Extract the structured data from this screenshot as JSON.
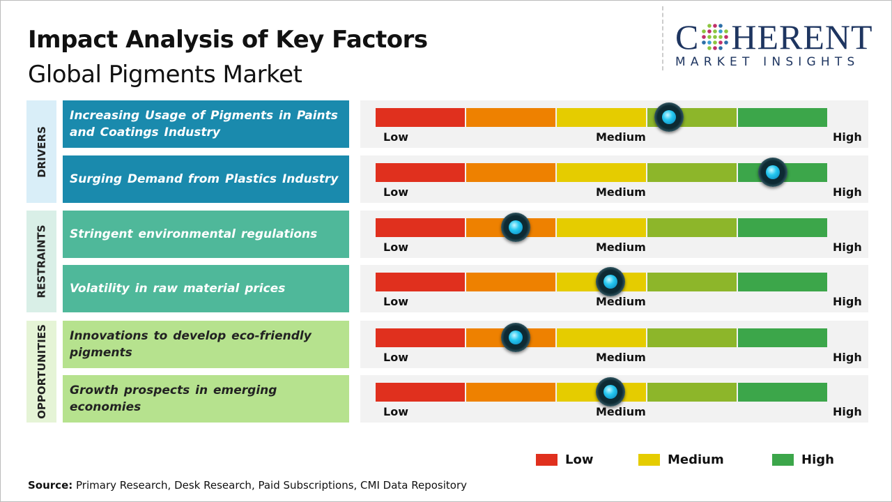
{
  "header": {
    "title": "Impact Analysis of Key Factors",
    "subtitle": "Global Pigments Market"
  },
  "logo": {
    "text_main": "COHERENT",
    "text_sub": "MARKET INSIGHTS"
  },
  "colors": {
    "low": "#e0301e",
    "medium_low": "#ee8100",
    "medium": "#e5cc00",
    "medium_high": "#8db62a",
    "high": "#3ca64a",
    "drivers": "#1a8aad",
    "restraints": "#4fb89a",
    "opportunities": "#b6e28e"
  },
  "chart_data": {
    "type": "gauge",
    "scale_labels": [
      "Low",
      "Medium",
      "High"
    ],
    "categories": [
      {
        "name": "DRIVERS",
        "factors": [
          {
            "label": "Increasing Usage of Pigments in Paints and Coatings Industry",
            "impact": 0.65
          },
          {
            "label": "Surging Demand from Plastics Industry",
            "impact": 0.88
          }
        ]
      },
      {
        "name": "RESTRAINTS",
        "factors": [
          {
            "label": "Stringent environmental  regulations",
            "impact": 0.31
          },
          {
            "label": "Volatility  in raw material  prices",
            "impact": 0.52
          }
        ]
      },
      {
        "name": "OPPORTUNITIES",
        "factors": [
          {
            "label": "Innovations to develop eco-friendly pigments",
            "impact": 0.31
          },
          {
            "label": "Growth prospects in emerging economies",
            "impact": 0.52
          }
        ]
      }
    ],
    "legend": [
      {
        "label": "Low",
        "color": "#e0301e"
      },
      {
        "label": "Medium",
        "color": "#e5cc00"
      },
      {
        "label": "High",
        "color": "#3ca64a"
      }
    ]
  },
  "source": {
    "label": "Source:",
    "text": " Primary Research, Desk Research, Paid Subscriptions, CMI Data Repository"
  }
}
